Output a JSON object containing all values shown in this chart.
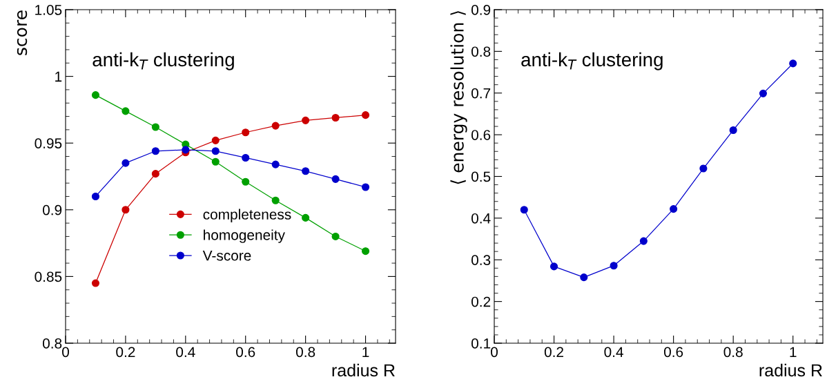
{
  "chart_data": [
    {
      "type": "line",
      "xlabel": "radius R",
      "ylabel": "score",
      "annotations": [
        "anti-k$_{T}$ clustering"
      ],
      "x": [
        0.1,
        0.2,
        0.3,
        0.4,
        0.5,
        0.6,
        0.7,
        0.8,
        0.9,
        1.0
      ],
      "series": [
        {
          "name": "completeness",
          "color": "#cc0000",
          "values": [
            0.845,
            0.9,
            0.927,
            0.943,
            0.952,
            0.958,
            0.963,
            0.967,
            0.969,
            0.971
          ]
        },
        {
          "name": "homogeneity",
          "color": "#00a000",
          "values": [
            0.986,
            0.974,
            0.962,
            0.949,
            0.936,
            0.921,
            0.907,
            0.894,
            0.88,
            0.869
          ]
        },
        {
          "name": "V-score",
          "color": "#0000cc",
          "values": [
            0.91,
            0.935,
            0.944,
            0.945,
            0.944,
            0.939,
            0.934,
            0.929,
            0.923,
            0.917
          ]
        }
      ],
      "xlim": [
        0,
        1.1
      ],
      "xticks": [
        0,
        0.2,
        0.4,
        0.6,
        0.8,
        1
      ],
      "ylim": [
        0.8,
        1.05
      ],
      "yticks": [
        0.8,
        0.85,
        0.9,
        0.95,
        1,
        1.05
      ],
      "marker": "circle",
      "legend": "bottom",
      "grid": false
    },
    {
      "type": "line",
      "xlabel": "radius R",
      "ylabel": "⟨ energy resolution ⟩",
      "annotations": [
        "anti-k$_{T}$ clustering"
      ],
      "x": [
        0.1,
        0.2,
        0.3,
        0.4,
        0.5,
        0.6,
        0.7,
        0.8,
        0.9,
        1.0
      ],
      "series": [
        {
          "color": "#0000cc",
          "values": [
            0.42,
            0.284,
            0.258,
            0.286,
            0.345,
            0.422,
            0.519,
            0.611,
            0.699,
            0.771
          ]
        }
      ],
      "xlim": [
        0,
        1.1
      ],
      "xticks": [
        0,
        0.2,
        0.4,
        0.6,
        0.8,
        1
      ],
      "ylim": [
        0.1,
        0.9
      ],
      "yticks": [
        0.1,
        0.2,
        0.3,
        0.4,
        0.5,
        0.6,
        0.7,
        0.8,
        0.9
      ],
      "marker": "circle",
      "grid": false
    }
  ]
}
